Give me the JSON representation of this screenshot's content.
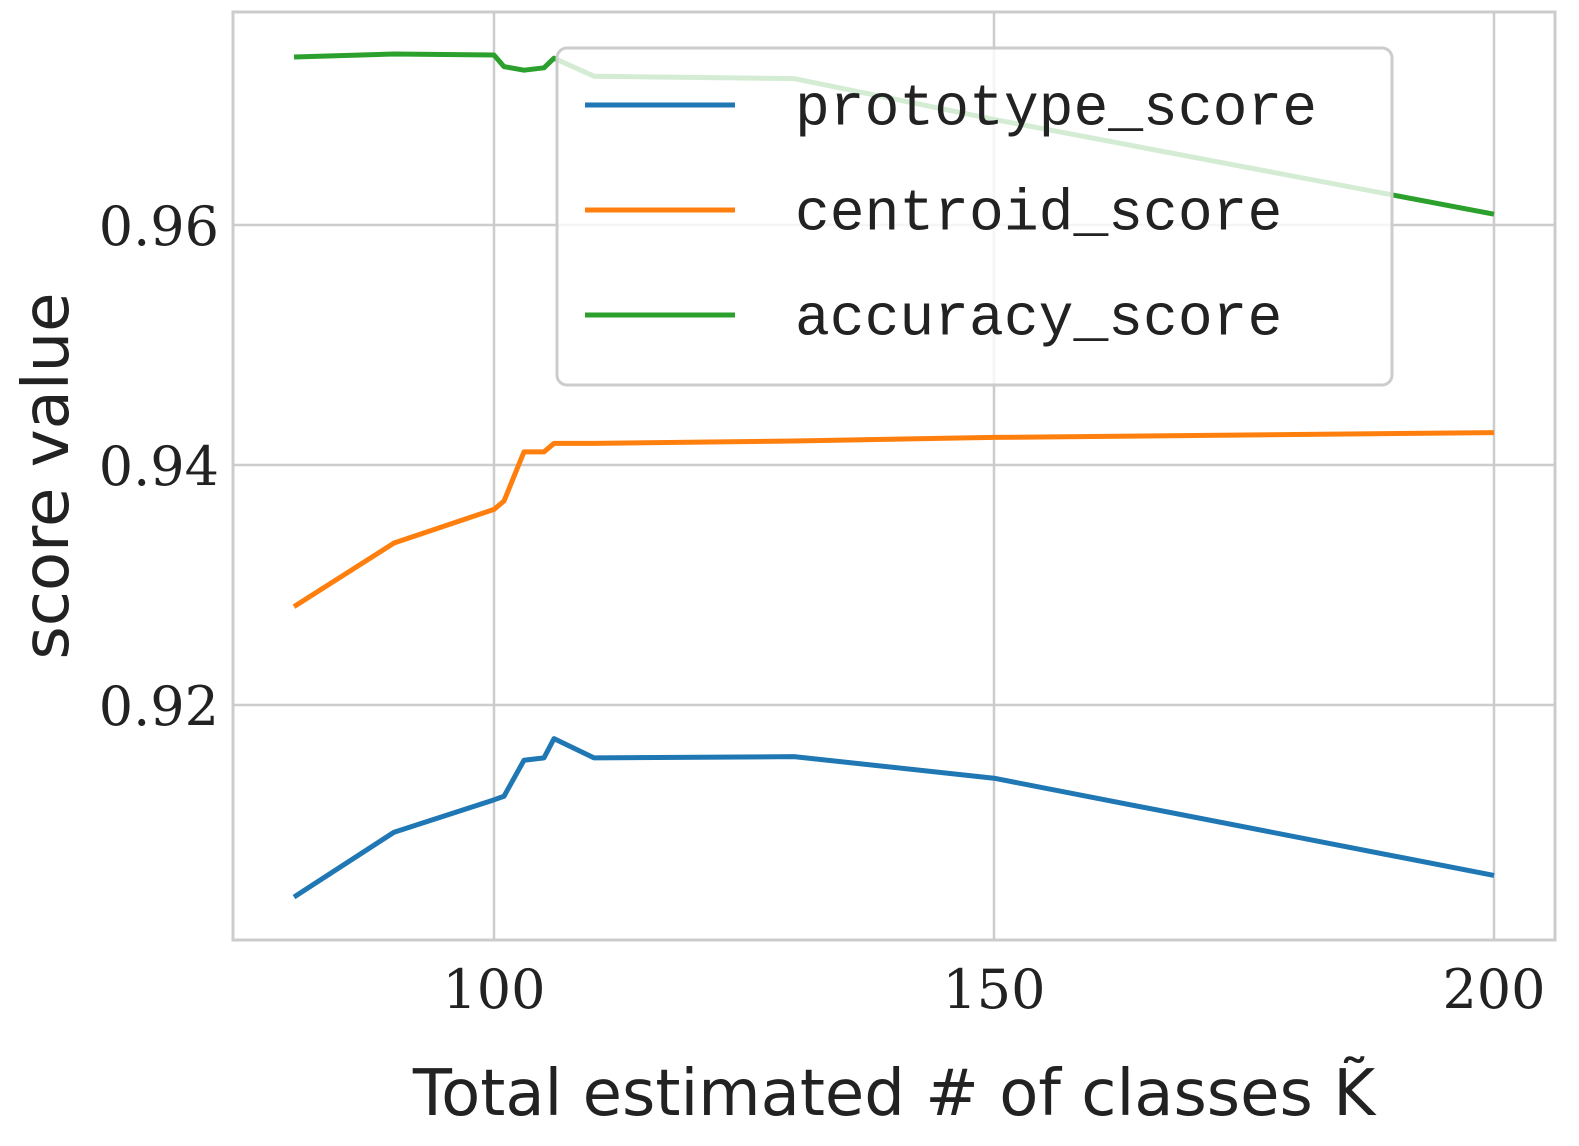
{
  "chart_data": {
    "type": "line",
    "x_label": "Total estimated # of classes K̃",
    "y_label": "score value",
    "x": [
      80,
      90,
      100,
      101,
      103,
      105,
      106,
      110,
      130,
      150,
      200
    ],
    "series": [
      {
        "name": "prototype_score",
        "color": "#1f77b4",
        "values": [
          0.904,
          0.9094,
          0.9121,
          0.9124,
          0.9154,
          0.9156,
          0.9172,
          0.9156,
          0.9157,
          0.9139,
          0.9058
        ]
      },
      {
        "name": "centroid_score",
        "color": "#ff7f0e",
        "values": [
          0.9282,
          0.9335,
          0.9363,
          0.937,
          0.9411,
          0.9411,
          0.9418,
          0.9418,
          0.942,
          0.9423,
          0.9427
        ]
      },
      {
        "name": "accuracy_score",
        "color": "#2ca02c",
        "values": [
          0.974,
          0.97425,
          0.97417,
          0.9732,
          0.9729,
          0.9731,
          0.9739,
          0.9724,
          0.9722,
          0.9688,
          0.9609
        ]
      }
    ],
    "xlim": [
      73.9,
      206.1
    ],
    "ylim": [
      0.90042,
      0.97775
    ],
    "xticks": [
      100,
      150,
      200
    ],
    "yticks": [
      0.92,
      0.94,
      0.96
    ],
    "grid": true,
    "legend": "upper center"
  }
}
